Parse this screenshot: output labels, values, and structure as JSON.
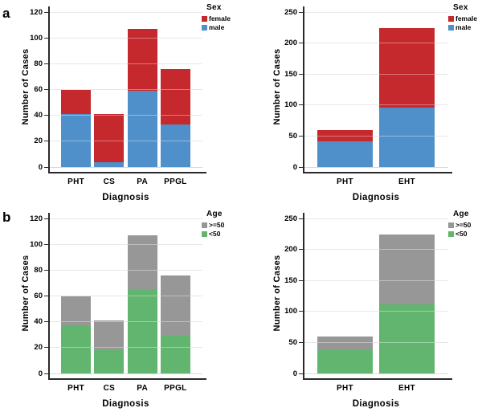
{
  "figure": {
    "panel_a_label": "a",
    "panel_b_label": "b",
    "background": "#ffffff"
  },
  "styles": {
    "grid_color": "#d9d9d9",
    "axis_color": "#2a2a2a",
    "text_color": "#000000",
    "female_color": "#c5282d",
    "male_color": "#4f90cb",
    "age_ge50_color": "#979797",
    "age_lt50_color": "#62b56f"
  },
  "chart_data": [
    {
      "id": "sex-by-diagnosis",
      "panel": "a",
      "type": "bar",
      "stacked": true,
      "grid": true,
      "xlabel": "Diagnosis",
      "ylabel": "Number of Cases",
      "categories": [
        "PHT",
        "CS",
        "PA",
        "PPGL"
      ],
      "series": [
        {
          "name": "male",
          "color": "#4f90cb",
          "values": [
            41,
            4,
            59,
            33
          ]
        },
        {
          "name": "female",
          "color": "#c5282d",
          "values": [
            19,
            37,
            48,
            43
          ]
        }
      ],
      "totals": [
        60,
        41,
        107,
        76
      ],
      "ylim": [
        0,
        120
      ],
      "yticks": [
        0,
        20,
        40,
        60,
        80,
        100,
        120
      ],
      "legend": {
        "title": "Sex",
        "position": "top-right",
        "items": [
          {
            "label": "female",
            "color": "#c5282d"
          },
          {
            "label": "male",
            "color": "#4f90cb"
          }
        ]
      }
    },
    {
      "id": "sex-pht-vs-eht",
      "panel": "a",
      "type": "bar",
      "stacked": true,
      "grid": true,
      "xlabel": "Diagnosis",
      "ylabel": "Number of Cases",
      "categories": [
        "PHT",
        "EHT"
      ],
      "series": [
        {
          "name": "male",
          "color": "#4f90cb",
          "values": [
            41,
            96
          ]
        },
        {
          "name": "female",
          "color": "#c5282d",
          "values": [
            19,
            128
          ]
        }
      ],
      "totals": [
        60,
        224
      ],
      "ylim": [
        0,
        250
      ],
      "yticks": [
        0,
        50,
        100,
        150,
        200,
        250
      ],
      "legend": {
        "title": "Sex",
        "position": "top-right",
        "items": [
          {
            "label": "female",
            "color": "#c5282d"
          },
          {
            "label": "male",
            "color": "#4f90cb"
          }
        ]
      }
    },
    {
      "id": "age-by-diagnosis",
      "panel": "b",
      "type": "bar",
      "stacked": true,
      "grid": true,
      "xlabel": "Diagnosis",
      "ylabel": "Number of Cases",
      "categories": [
        "PHT",
        "CS",
        "PA",
        "PPGL"
      ],
      "series": [
        {
          "name": "<50",
          "color": "#62b56f",
          "values": [
            37,
            18,
            65,
            29
          ]
        },
        {
          "name": ">=50",
          "color": "#979797",
          "values": [
            23,
            23,
            42,
            47
          ]
        }
      ],
      "totals": [
        60,
        41,
        107,
        76
      ],
      "ylim": [
        0,
        120
      ],
      "yticks": [
        0,
        20,
        40,
        60,
        80,
        100,
        120
      ],
      "legend": {
        "title": "Age",
        "position": "top-right",
        "items": [
          {
            "label": ">=50",
            "color": "#979797"
          },
          {
            "label": "<50",
            "color": "#62b56f"
          }
        ]
      }
    },
    {
      "id": "age-pht-vs-eht",
      "panel": "b",
      "type": "bar",
      "stacked": true,
      "grid": true,
      "xlabel": "Diagnosis",
      "ylabel": "Number of Cases",
      "categories": [
        "PHT",
        "EHT"
      ],
      "series": [
        {
          "name": "<50",
          "color": "#62b56f",
          "values": [
            37,
            112
          ]
        },
        {
          "name": ">=50",
          "color": "#979797",
          "values": [
            23,
            112
          ]
        }
      ],
      "totals": [
        60,
        224
      ],
      "ylim": [
        0,
        250
      ],
      "yticks": [
        0,
        50,
        100,
        150,
        200,
        250
      ],
      "legend": {
        "title": "Age",
        "position": "top-right",
        "items": [
          {
            "label": ">=50",
            "color": "#979797"
          },
          {
            "label": "<50",
            "color": "#62b56f"
          }
        ]
      }
    }
  ]
}
